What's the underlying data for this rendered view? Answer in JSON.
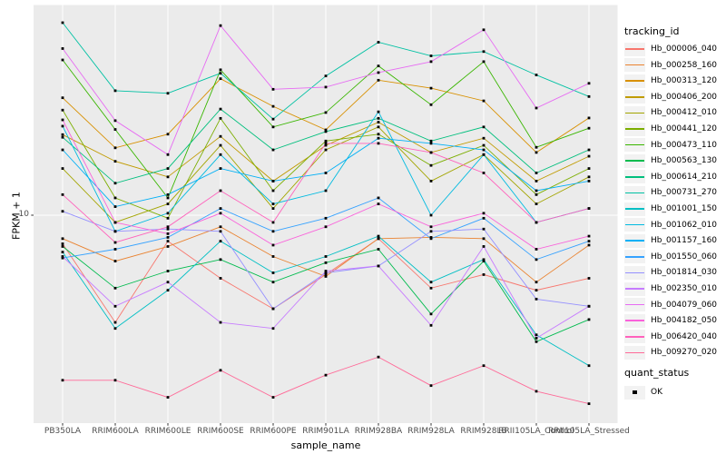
{
  "chart_data": {
    "type": "line",
    "title": "",
    "xlabel": "sample_name",
    "ylabel": "FPKM + 1",
    "y_scale": "log10",
    "ylim": [
      1.3,
      80
    ],
    "y_ticks": [
      {
        "value": 10,
        "label": "10"
      }
    ],
    "grid": "white-on-gray",
    "panel_bg": "#EBEBEB",
    "grid_color": "#FFFFFF",
    "point_color": "#000000",
    "legend_position": "right",
    "categories": [
      "PB350LA",
      "RRIM600LA",
      "RRIM600LE",
      "RRIM600SE",
      "RRIM600PE",
      "RRIM901LA",
      "RRIM928BA",
      "RRIM928LA",
      "RRIM928LB",
      "RRII105LA_Control",
      "RRII105LA_Stressed"
    ],
    "series": [
      {
        "name": "Hb_000006_040",
        "color": "#F8766D",
        "values": [
          7.5,
          3.4,
          7.7,
          5.3,
          3.9,
          5.5,
          7.9,
          4.8,
          5.5,
          4.7,
          5.3
        ]
      },
      {
        "name": "Hb_000258_160",
        "color": "#EA8331",
        "values": [
          7.9,
          6.3,
          7.3,
          8.9,
          6.6,
          5.4,
          7.9,
          8.0,
          7.9,
          5.1,
          7.4
        ]
      },
      {
        "name": "Hb_000313_120",
        "color": "#D89000",
        "values": [
          32.6,
          19.7,
          22.6,
          39.5,
          29.9,
          23.6,
          38.9,
          35.9,
          31.6,
          18.8,
          26.6
        ]
      },
      {
        "name": "Hb_000406_200",
        "color": "#C09B00",
        "values": [
          22.5,
          17.2,
          14.7,
          22.1,
          14.1,
          20.2,
          25.5,
          18.8,
          21.7,
          14.1,
          18.1
        ]
      },
      {
        "name": "Hb_000412_010",
        "color": "#A3A500",
        "values": [
          16.0,
          9.3,
          11.2,
          20.2,
          10.7,
          19.3,
          24.3,
          14.1,
          18.4,
          11.2,
          14.7
        ]
      },
      {
        "name": "Hb_000441_120",
        "color": "#7CAE00",
        "values": [
          28.8,
          11.9,
          9.7,
          26.5,
          12.8,
          21.1,
          22.6,
          16.5,
          20.2,
          12.3,
          16.0
        ]
      },
      {
        "name": "Hb_000473_110",
        "color": "#39B600",
        "values": [
          47.7,
          23.7,
          11.9,
          43.2,
          24.3,
          28.1,
          44.9,
          30.4,
          46.9,
          19.8,
          24.0
        ]
      },
      {
        "name": "Hb_000563_130",
        "color": "#00BB4E",
        "values": [
          7.3,
          4.8,
          5.7,
          6.4,
          5.1,
          6.2,
          7.1,
          3.7,
          6.3,
          2.8,
          3.5
        ]
      },
      {
        "name": "Hb_000614_210",
        "color": "#00BF7D",
        "values": [
          21.9,
          13.8,
          16.0,
          29.1,
          19.3,
          23.2,
          26.5,
          21.1,
          24.3,
          15.3,
          19.3
        ]
      },
      {
        "name": "Hb_000731_270",
        "color": "#00C1A3",
        "values": [
          69.4,
          35.0,
          34.1,
          41.7,
          26.3,
          40.6,
          57.0,
          49.7,
          51.9,
          41.0,
          33.0
        ]
      },
      {
        "name": "Hb_001001_150",
        "color": "#00BFC4",
        "values": [
          6.9,
          3.2,
          4.7,
          7.7,
          5.6,
          6.6,
          8.1,
          5.1,
          6.4,
          3.0,
          2.2
        ]
      },
      {
        "name": "Hb_001062_010",
        "color": "#00BAE0",
        "values": [
          24.5,
          8.5,
          10.2,
          18.4,
          11.2,
          12.8,
          28.3,
          10.0,
          18.4,
          9.3,
          10.7
        ]
      },
      {
        "name": "Hb_001157_160",
        "color": "#00B0F6",
        "values": [
          19.3,
          10.9,
          12.3,
          16.0,
          14.1,
          15.3,
          21.7,
          20.6,
          19.3,
          12.8,
          14.1
        ]
      },
      {
        "name": "Hb_001550_060",
        "color": "#35A2FF",
        "values": [
          6.5,
          7.1,
          8.0,
          10.7,
          8.5,
          9.7,
          11.9,
          7.9,
          9.7,
          6.4,
          7.7
        ]
      },
      {
        "name": "Hb_001814_030",
        "color": "#9590FF",
        "values": [
          10.4,
          8.5,
          8.7,
          8.5,
          3.9,
          5.6,
          6.0,
          8.5,
          8.7,
          4.3,
          4.0
        ]
      },
      {
        "name": "Hb_002350_010",
        "color": "#C77CFF",
        "values": [
          6.6,
          4.0,
          5.1,
          3.4,
          3.2,
          5.7,
          6.0,
          3.3,
          7.3,
          2.9,
          4.0
        ]
      },
      {
        "name": "Hb_004079_060",
        "color": "#E76BF3",
        "values": [
          53.5,
          25.9,
          18.4,
          67.4,
          35.5,
          36.3,
          42.0,
          46.9,
          64.6,
          29.4,
          37.7
        ]
      },
      {
        "name": "Hb_004182_050",
        "color": "#FA62DB",
        "values": [
          26.1,
          9.3,
          8.3,
          10.2,
          7.4,
          8.9,
          11.2,
          8.9,
          10.2,
          7.1,
          8.1
        ]
      },
      {
        "name": "Hb_006420_040",
        "color": "#FF62BC",
        "values": [
          12.3,
          7.6,
          8.9,
          12.8,
          9.3,
          20.6,
          20.6,
          18.8,
          15.3,
          9.3,
          10.7
        ]
      },
      {
        "name": "Hb_009270_020",
        "color": "#FF6A98",
        "values": [
          1.9,
          1.9,
          1.6,
          2.1,
          1.6,
          2.0,
          2.4,
          1.8,
          2.2,
          1.7,
          1.5
        ]
      }
    ],
    "legend": {
      "title": "tracking_id"
    },
    "quant_status": {
      "title": "quant_status",
      "entries": [
        {
          "label": "OK",
          "glyph": "black-square-point"
        }
      ]
    }
  },
  "axes": {
    "x_title": "sample_name",
    "y_title": "FPKM + 1",
    "y_tick": "10"
  }
}
